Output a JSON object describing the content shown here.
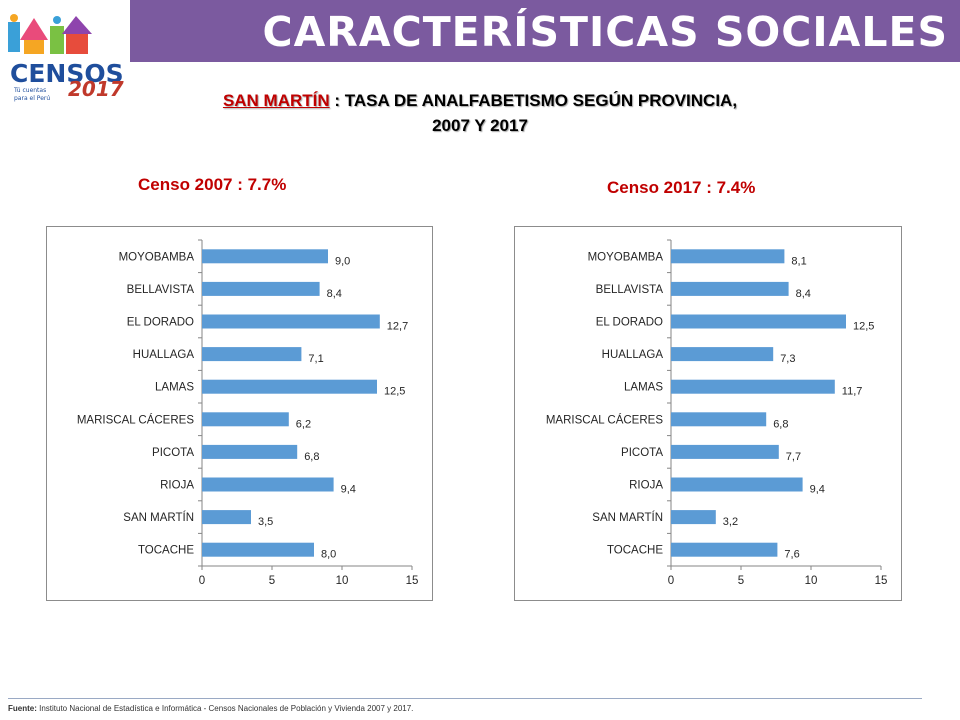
{
  "header": {
    "title": "CARACTERÍSTICAS SOCIALES"
  },
  "logo": {
    "word": "CENSOS",
    "year": "2017",
    "tagline_1": "Tú cuentas",
    "tagline_2": "para el Perú"
  },
  "subtitle": {
    "place": "SAN MARTÍN",
    "line1_rest": " : TASA DE ANALFABETISMO SEGÚN PROVINCIA,",
    "line2": "2007 Y 2017"
  },
  "footer": {
    "label": "Fuente:",
    "text": " Instituto Nacional de Estadística e Informática - Censos Nacionales de Población y Vivienda 2007 y 2017."
  },
  "colors": {
    "header_bg": "#7b5a9f",
    "bar": "#5b9bd5",
    "accent_red": "#c00000"
  },
  "chart_data": [
    {
      "type": "bar",
      "orientation": "horizontal",
      "title": "Censo 2007 : 7.7%",
      "categories": [
        "MOYOBAMBA",
        "BELLAVISTA",
        "EL DORADO",
        "HUALLAGA",
        "LAMAS",
        "MARISCAL CÁCERES",
        "PICOTA",
        "RIOJA",
        "SAN MARTÍN",
        "TOCACHE"
      ],
      "values": [
        9.0,
        8.4,
        12.7,
        7.1,
        12.5,
        6.2,
        6.8,
        9.4,
        3.5,
        8.0
      ],
      "value_labels": [
        "9,0",
        "8,4",
        "12,7",
        "7,1",
        "12,5",
        "6,2",
        "6,8",
        "9,4",
        "3,5",
        "8,0"
      ],
      "xlim": [
        0,
        15
      ],
      "xticks": [
        "0",
        "5",
        "10",
        "15"
      ],
      "grid": false,
      "legend": "none"
    },
    {
      "type": "bar",
      "orientation": "horizontal",
      "title": "Censo 2017 : 7.4%",
      "categories": [
        "MOYOBAMBA",
        "BELLAVISTA",
        "EL DORADO",
        "HUALLAGA",
        "LAMAS",
        "MARISCAL CÁCERES",
        "PICOTA",
        "RIOJA",
        "SAN MARTÍN",
        "TOCACHE"
      ],
      "values": [
        8.1,
        8.4,
        12.5,
        7.3,
        11.7,
        6.8,
        7.7,
        9.4,
        3.2,
        7.6
      ],
      "value_labels": [
        "8,1",
        "8,4",
        "12,5",
        "7,3",
        "11,7",
        "6,8",
        "7,7",
        "9,4",
        "3,2",
        "7,6"
      ],
      "xlim": [
        0,
        15
      ],
      "xticks": [
        "0",
        "5",
        "10",
        "15"
      ],
      "grid": false,
      "legend": "none"
    }
  ]
}
